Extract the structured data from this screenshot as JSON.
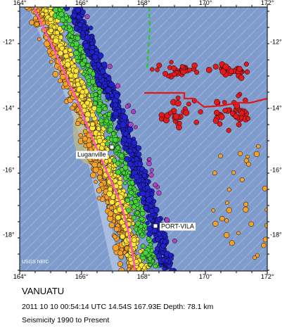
{
  "map": {
    "longitude_labels": [
      "164°",
      "166°",
      "168°",
      "170°",
      "172°"
    ],
    "latitude_labels": [
      "-12°",
      "-14°",
      "-16°",
      "-18°"
    ],
    "cities": [
      {
        "name": "Luganville"
      },
      {
        "name": "PORT-VILA"
      }
    ],
    "credit": "USGS NEIC",
    "colors": {
      "sea": "#7f9ccc",
      "depth_0_33km": "#e31a1c",
      "depth_33_70km": "#f4a12c",
      "depth_70_150km": "#ffe438",
      "depth_150_300km": "#46d43a",
      "depth_300_500km": "#2222cc",
      "depth_deep": "#b040c8",
      "plate_boundary": "#ff55b8",
      "trench_line": "#e01818",
      "fault_dashed": "#22cc22"
    }
  },
  "caption": {
    "title": "VANUATU",
    "event": "2011 10 10 00:54:14 UTC 14.54S 167.93E Depth: 78.1 km",
    "subtitle": "Seismicity 1990 to Present"
  }
}
